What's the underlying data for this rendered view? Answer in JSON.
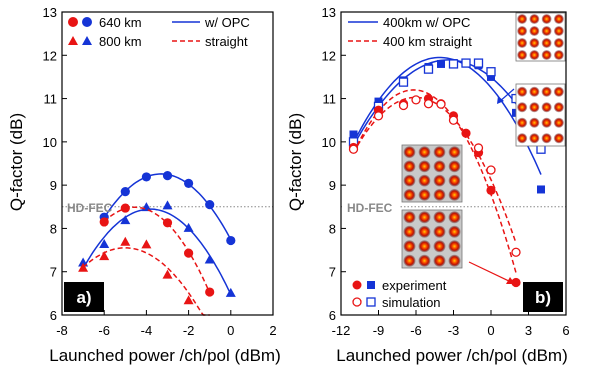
{
  "colors": {
    "blue": "#1534d6",
    "red": "#e81414",
    "hd_fec": "#888888",
    "axis": "#000000"
  },
  "chart_data": [
    {
      "type": "line",
      "panel_label": "a)",
      "xlabel": "Launched power /ch/pol (dBm)",
      "ylabel": "Q-factor (dB)",
      "xlim": [
        -8,
        2
      ],
      "ylim": [
        6,
        13
      ],
      "xticks": [
        -8,
        -6,
        -4,
        -2,
        0,
        2
      ],
      "yticks": [
        6,
        7,
        8,
        9,
        10,
        11,
        12,
        13
      ],
      "threshold": {
        "label": "HD-FEC",
        "y": 8.5
      },
      "legend": [
        {
          "label": "640 km",
          "marker": "circle",
          "colors": [
            "red",
            "blue"
          ]
        },
        {
          "label": "800 km",
          "marker": "triangle",
          "colors": [
            "red",
            "blue"
          ]
        },
        {
          "label": "w/ OPC",
          "line": "solid",
          "color": "blue"
        },
        {
          "label": "straight",
          "line": "dashed",
          "color": "red"
        }
      ],
      "series": [
        {
          "group": "640 km w/ OPC",
          "color": "blue",
          "marker": "circle",
          "fit": "solid",
          "x": [
            -6,
            -5,
            -4,
            -3,
            -2,
            -1,
            0
          ],
          "y": [
            8.26,
            8.85,
            9.19,
            9.22,
            9.04,
            8.55,
            7.72
          ]
        },
        {
          "group": "800 km w/ OPC",
          "color": "blue",
          "marker": "triangle",
          "fit": "solid",
          "x": [
            -7,
            -6,
            -5,
            -4,
            -3,
            -2,
            -1,
            0
          ],
          "y": [
            7.2,
            7.63,
            8.18,
            8.48,
            8.52,
            8.0,
            7.27,
            6.5
          ]
        },
        {
          "group": "640 km straight",
          "color": "red",
          "marker": "circle",
          "fit": "dashed",
          "x": [
            -6,
            -5,
            -3,
            -2,
            -1
          ],
          "y": [
            8.15,
            8.47,
            8.13,
            7.43,
            6.53
          ]
        },
        {
          "group": "800 km straight",
          "color": "red",
          "marker": "triangle",
          "fit": "dashed",
          "x": [
            -7,
            -6,
            -5,
            -4,
            -3,
            -2,
            -1
          ],
          "y": [
            7.08,
            7.35,
            7.68,
            7.62,
            6.92,
            6.33,
            5.85
          ]
        }
      ]
    },
    {
      "type": "line",
      "panel_label": "b)",
      "xlabel": "Launched power /ch/pol (dBm)",
      "ylabel": "Q-factor (dB)",
      "xlim": [
        -12,
        6
      ],
      "ylim": [
        6,
        13
      ],
      "xticks": [
        -12,
        -9,
        -6,
        -3,
        0,
        3,
        6
      ],
      "yticks": [
        6,
        7,
        8,
        9,
        10,
        11,
        12,
        13
      ],
      "threshold": {
        "label": "HD-FEC",
        "y": 8.5
      },
      "legend": [
        {
          "label": "400km w/ OPC",
          "line": "solid",
          "color": "blue"
        },
        {
          "label": "400 km straight",
          "line": "dashed",
          "color": "red"
        }
      ],
      "legend_bottom": [
        {
          "label": "experiment",
          "marker": "filled",
          "shapes": [
            "circle",
            "square"
          ]
        },
        {
          "label": "simulation",
          "marker": "open",
          "shapes": [
            "circle",
            "square"
          ]
        }
      ],
      "series": [
        {
          "group": "400km w/ OPC experiment",
          "color": "blue",
          "marker": "square",
          "filled": true,
          "fit": "solid",
          "x": [
            -11,
            -9,
            -7,
            -5,
            -4,
            -3,
            -2,
            -1,
            0,
            2,
            4
          ],
          "y": [
            10.17,
            10.93,
            11.42,
            11.73,
            11.8,
            11.82,
            11.83,
            11.77,
            11.5,
            10.67,
            8.9
          ]
        },
        {
          "group": "400km w/ OPC simulation",
          "color": "blue",
          "marker": "square",
          "filled": false,
          "fit": "solid",
          "x": [
            -11,
            -9,
            -7,
            -5,
            -3,
            -2,
            -1,
            0,
            2,
            4
          ],
          "y": [
            10.0,
            10.82,
            11.38,
            11.68,
            11.8,
            11.82,
            11.82,
            11.62,
            11.0,
            9.83
          ]
        },
        {
          "group": "400 km straight experiment",
          "color": "red",
          "marker": "circle",
          "filled": true,
          "fit": "dashed",
          "x": [
            -11,
            -9,
            -7,
            -5,
            -4,
            -3,
            -2,
            -1,
            0,
            2
          ],
          "y": [
            9.87,
            10.73,
            10.88,
            11.0,
            10.88,
            10.6,
            10.2,
            9.75,
            8.88,
            6.75
          ]
        },
        {
          "group": "400 km straight simulation",
          "color": "red",
          "marker": "circle",
          "filled": false,
          "fit": "dashed",
          "x": [
            -11,
            -9,
            -7,
            -6,
            -5,
            -4,
            -3,
            -1,
            0,
            2
          ],
          "y": [
            9.83,
            10.6,
            10.84,
            10.97,
            10.88,
            10.87,
            10.5,
            9.86,
            9.35,
            7.45
          ]
        }
      ],
      "insets": [
        {
          "name": "constellation-top-right",
          "count": 2
        },
        {
          "name": "constellation-center",
          "count": 2
        }
      ]
    }
  ]
}
